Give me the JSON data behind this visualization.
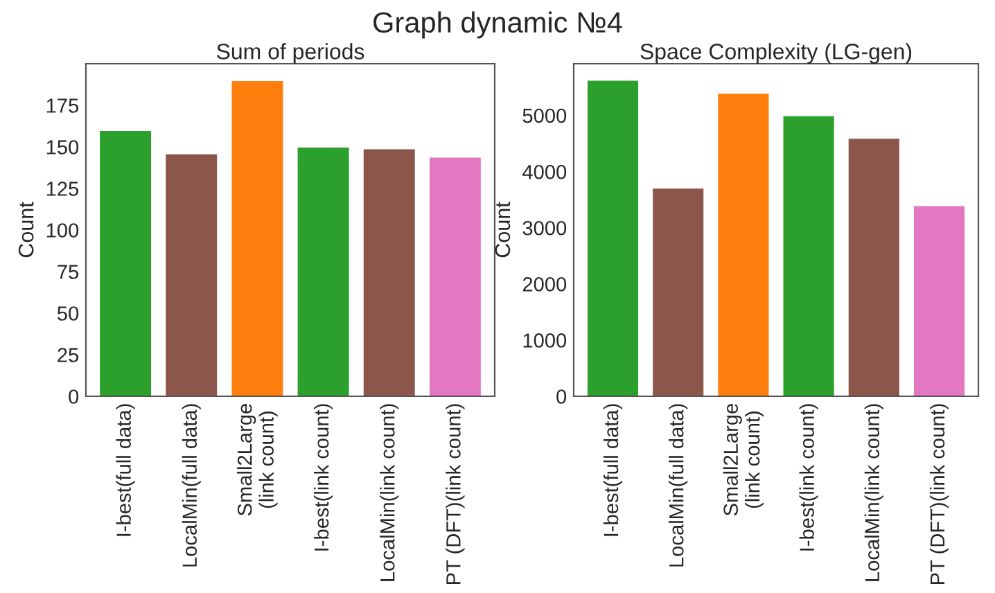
{
  "chart_data": [
    {
      "type": "bar",
      "title": "Sum of periods",
      "ylabel": "Count",
      "categories": [
        "I-best(full data)",
        "LocalMin(full data)",
        "Small2Large\n(link count)",
        "I-best(link count)",
        "LocalMin(link count)",
        "PT (DFT)(link count)"
      ],
      "values": [
        160,
        146,
        190,
        150,
        149,
        144
      ],
      "colors": [
        "#2ca02c",
        "#8c564b",
        "#ff7f0e",
        "#2ca02c",
        "#8c564b",
        "#e377c2"
      ],
      "ylim": [
        0,
        200
      ],
      "yticks": [
        0,
        25,
        50,
        75,
        100,
        125,
        150,
        175
      ],
      "grid": false
    },
    {
      "type": "bar",
      "title": "Space Complexity (LG-gen)",
      "ylabel": "Count",
      "categories": [
        "I-best(full data)",
        "LocalMin(full data)",
        "Small2Large\n(link count)",
        "I-best(link count)",
        "LocalMin(link count)",
        "PT (DFT)(link count)"
      ],
      "values": [
        5630,
        3710,
        5400,
        5000,
        4600,
        3400
      ],
      "colors": [
        "#2ca02c",
        "#8c564b",
        "#ff7f0e",
        "#2ca02c",
        "#8c564b",
        "#e377c2"
      ],
      "ylim": [
        0,
        5920
      ],
      "yticks": [
        0,
        1000,
        2000,
        3000,
        4000,
        5000
      ],
      "grid": false
    },
    {
      "type": "other",
      "title": "Graph dynamic №4"
    }
  ]
}
